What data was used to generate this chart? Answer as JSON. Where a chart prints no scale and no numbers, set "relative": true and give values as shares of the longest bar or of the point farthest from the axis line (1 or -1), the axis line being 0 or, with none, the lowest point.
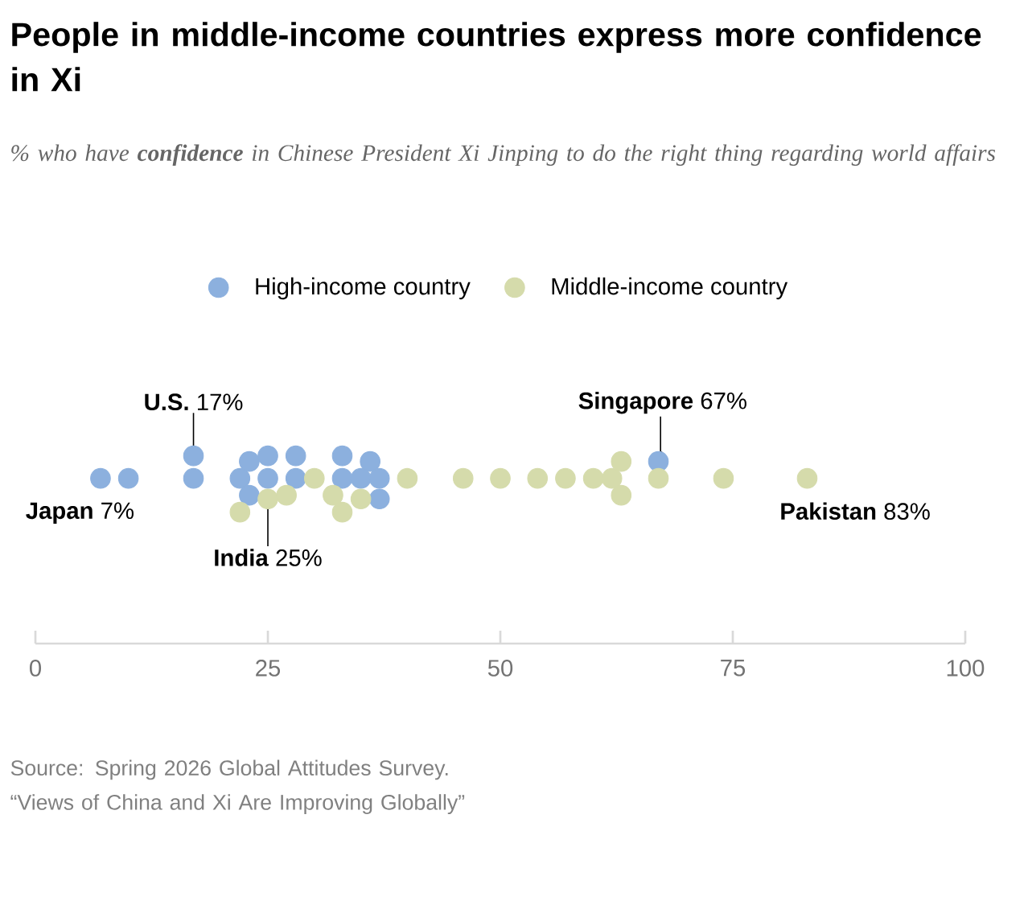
{
  "chart_data": {
    "type": "scatter",
    "title": "People in middle-income countries express more confidence in Xi",
    "subtitle": "% who have **confidence** in Chinese President Xi Jinping to do the right thing regarding world affairs",
    "relative": true,
    "legend": "top",
    "grid": false,
    "tick_labels": "x",
    "xlim": [
      0,
      100
    ],
    "xticks": [
      0,
      25,
      50,
      75,
      100
    ],
    "series": [
      {
        "name": "High-income country",
        "color": "#8cb0de",
        "x": [
          7,
          10,
          17,
          17,
          22,
          23,
          23,
          25,
          25,
          28,
          28,
          33,
          33,
          36,
          35,
          37,
          37,
          67
        ],
        "values": [
          0.88,
          0.88,
          1,
          0.88,
          0.88,
          0.97,
          0.79,
          1,
          0.88,
          1,
          0.88,
          1,
          0.88,
          0.97,
          0.88,
          0.88,
          0.77,
          0.97
        ]
      },
      {
        "name": "Middle-income country",
        "color": "#d5dbab",
        "x": [
          22,
          25,
          27,
          30,
          32,
          33,
          35,
          40,
          46,
          50,
          54,
          57,
          60,
          62,
          63,
          63,
          67,
          74,
          83
        ],
        "values": [
          0.7,
          0.77,
          0.79,
          0.88,
          0.79,
          0.7,
          0.77,
          0.88,
          0.88,
          0.88,
          0.88,
          0.88,
          0.88,
          0.88,
          0.97,
          0.79,
          0.88,
          0.88,
          0.88
        ]
      }
    ],
    "annotations": [
      {
        "text": "**U.S.** 17%",
        "x": 17,
        "y": 1
      },
      {
        "text": "**India** 25%",
        "x": 25,
        "y": 0.77
      },
      {
        "text": "**Singapore** 67%",
        "x": 67,
        "y": 0.97
      },
      {
        "text": "**Japan** 7%",
        "x": 7,
        "y": 0.88
      },
      {
        "text": "**Pakistan** 83%",
        "x": 83,
        "y": 0.88
      },
      "Source: Spring 2026 Global Attitudes Survey.",
      "“Views of China and Xi Are Improving Globally”"
    ]
  }
}
